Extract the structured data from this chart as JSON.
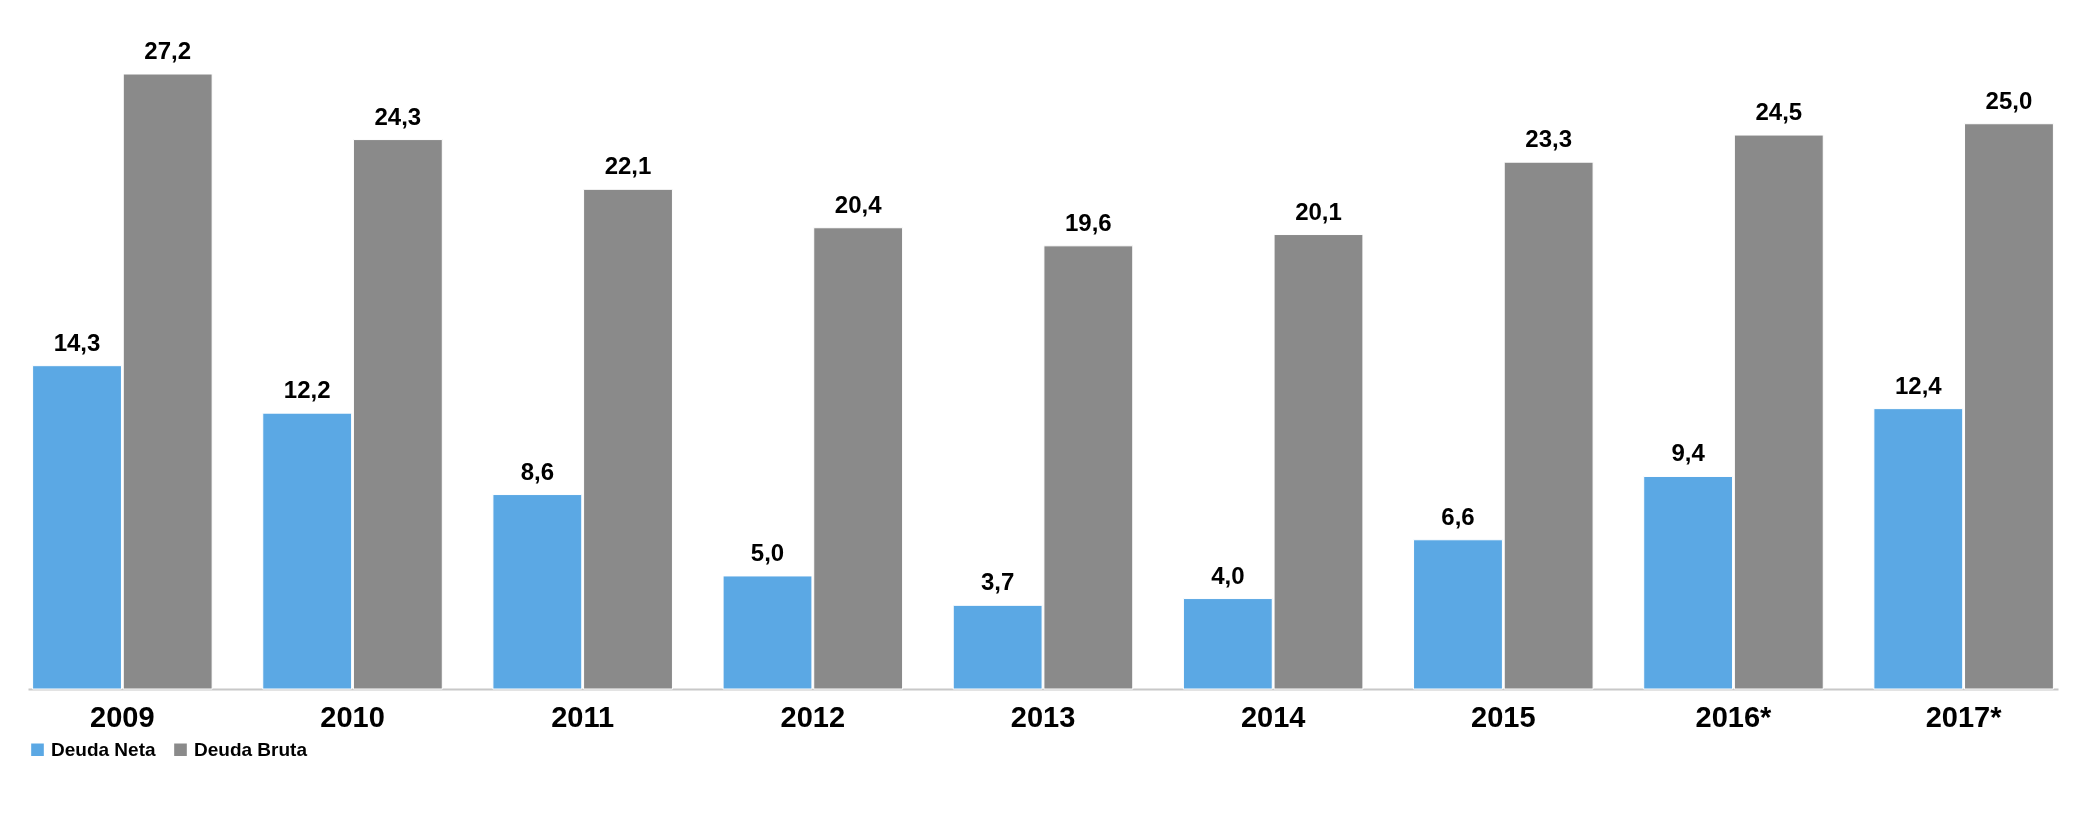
{
  "chart_data": {
    "type": "bar",
    "categories": [
      "2009",
      "2010",
      "2011",
      "2012",
      "2013",
      "2014",
      "2015",
      "2016*",
      "2017*"
    ],
    "legend": "bottom",
    "series": [
      {
        "name": "Deuda Neta",
        "color": "#5ba8e4",
        "values": [
          14.3,
          12.2,
          8.6,
          5.0,
          3.7,
          4.0,
          6.6,
          9.4,
          12.4
        ],
        "value_labels": [
          "14,3",
          "12,2",
          "8,6",
          "5,0",
          "3,7",
          "4,0",
          "6,6",
          "9,4",
          "12,4"
        ]
      },
      {
        "name": "Deuda Bruta",
        "color": "#8a8a8a",
        "values": [
          27.2,
          24.3,
          22.1,
          20.4,
          19.6,
          20.1,
          23.3,
          24.5,
          25.0
        ],
        "value_labels": [
          "27,2",
          "24,3",
          "22,1",
          "20,4",
          "19,6",
          "20,1",
          "23,3",
          "24,5",
          "25,0"
        ]
      }
    ]
  }
}
